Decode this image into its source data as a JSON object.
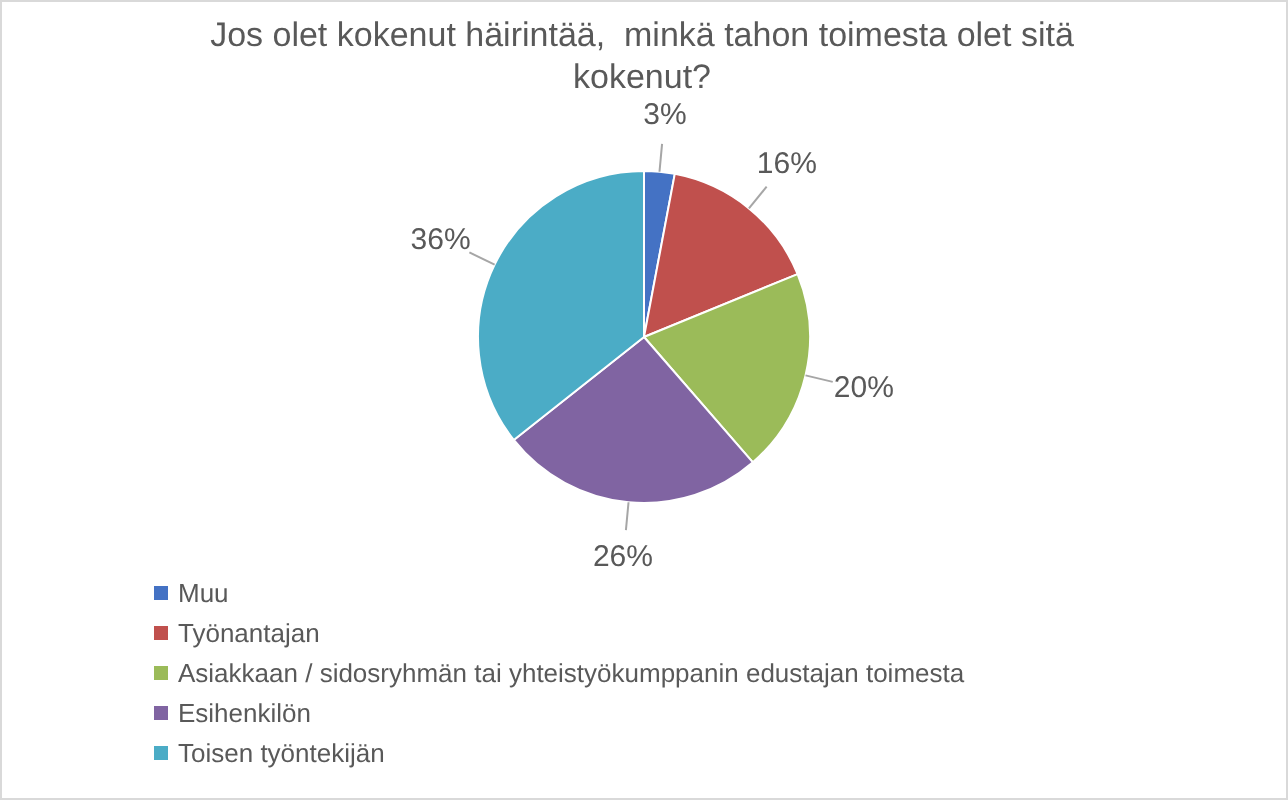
{
  "chart_data": {
    "type": "pie",
    "title": "Jos olet kokenut häirintää,  minkä tahon toimesta olet sitä kokenut?",
    "categories": [
      "Muu",
      "Työnantajan",
      "Asiakkaan / sidosryhmän tai yhteistyökumppanin edustajan toimesta",
      "Esihenkilön",
      "Toisen työntekijän"
    ],
    "values": [
      3,
      16,
      20,
      26,
      36
    ],
    "value_labels": [
      "3%",
      "16%",
      "20%",
      "26%",
      "36%"
    ],
    "colors": [
      "#4472c4",
      "#c0504d",
      "#9bbb59",
      "#8064a2",
      "#4bacc6"
    ],
    "legend": "bottom left"
  }
}
